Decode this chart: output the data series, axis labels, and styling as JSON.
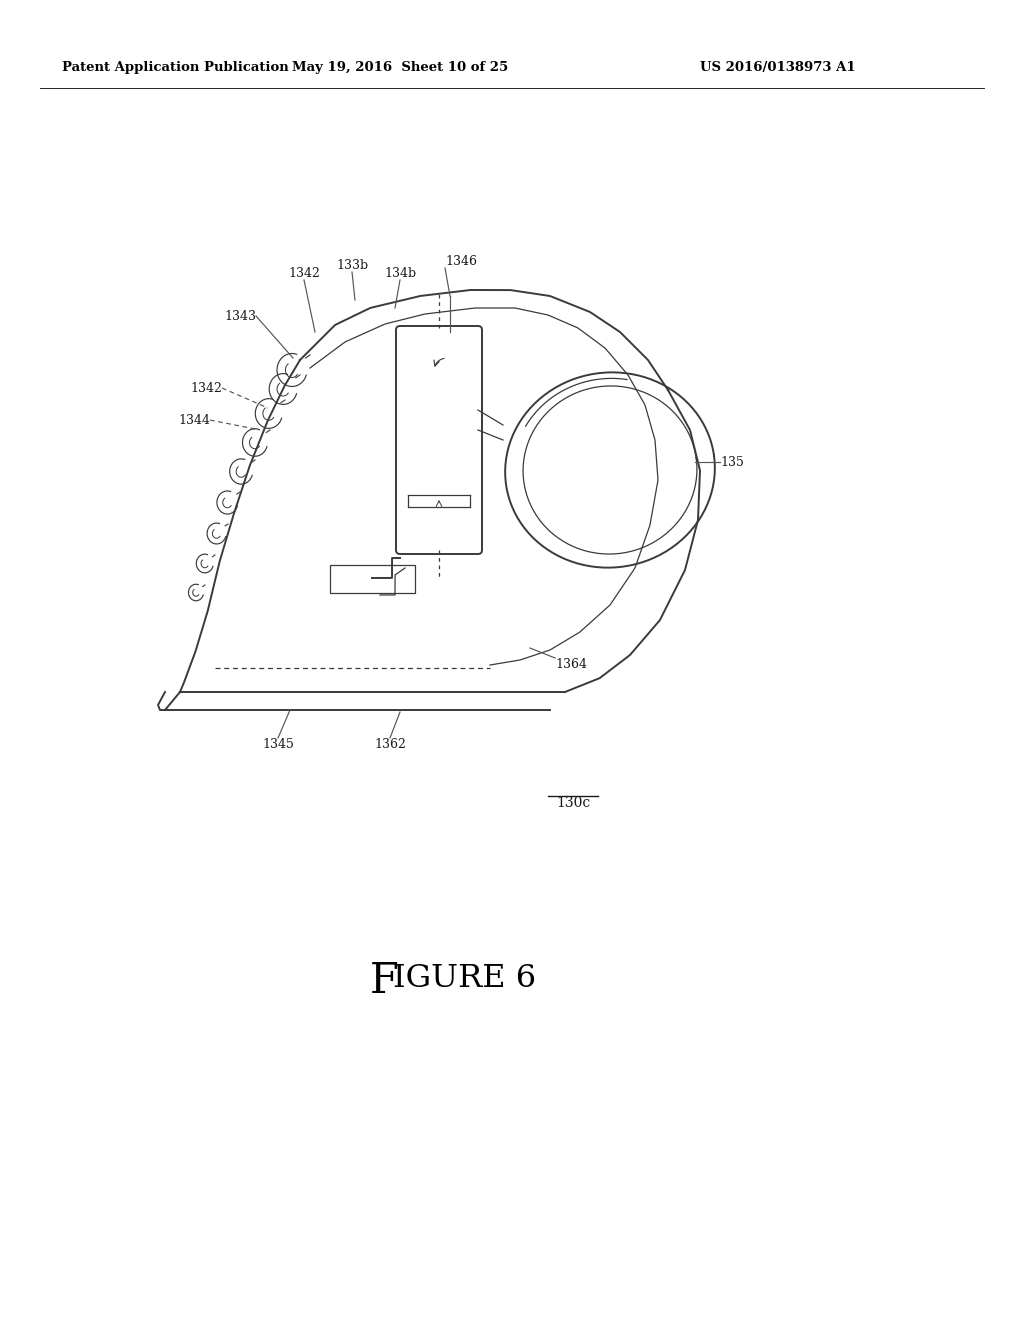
{
  "bg": "#ffffff",
  "header_left": "Patent Application Publication",
  "header_mid": "May 19, 2016  Sheet 10 of 25",
  "header_right": "US 2016/0138973 A1",
  "line_color": "#3a3a3a",
  "text_color": "#1a1a1a",
  "leader_color": "#555555",
  "lw_main": 1.4,
  "lw_thin": 0.9,
  "fs_header": 9.5,
  "fs_label": 9.0
}
